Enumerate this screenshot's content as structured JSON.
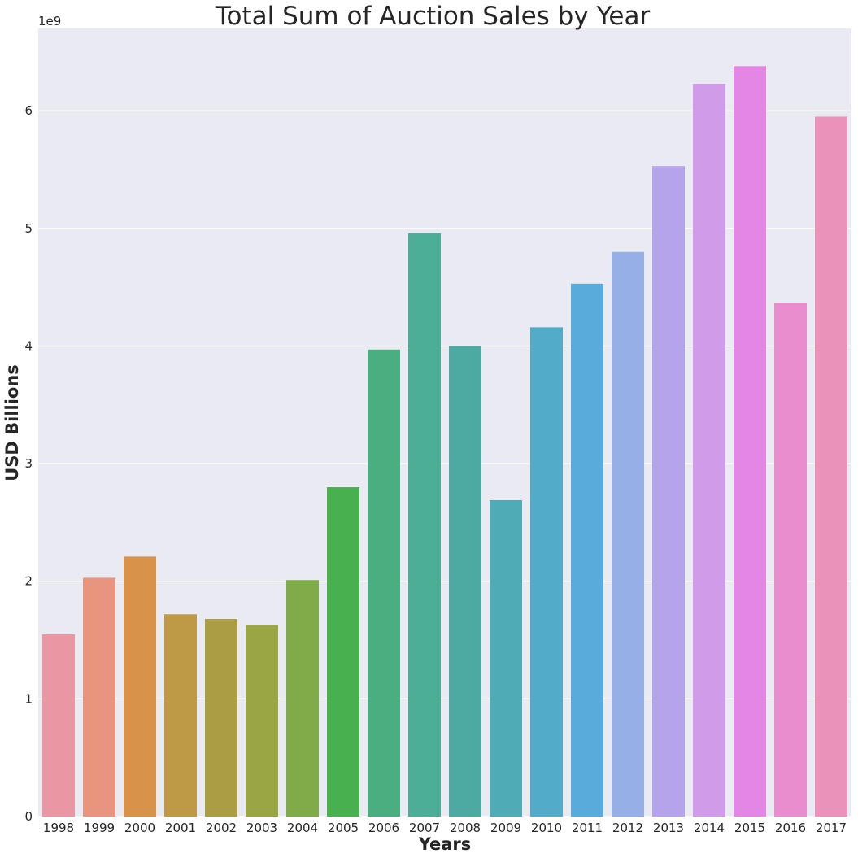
{
  "chart_data": {
    "type": "bar",
    "title": "Total Sum of Auction Sales by Year",
    "xlabel": "Years",
    "ylabel": "USD Billions",
    "y_offset_label": "1e9",
    "categories": [
      "1998",
      "1999",
      "2000",
      "2001",
      "2002",
      "2003",
      "2004",
      "2005",
      "2006",
      "2007",
      "2008",
      "2009",
      "2010",
      "2011",
      "2012",
      "2013",
      "2014",
      "2015",
      "2016",
      "2017"
    ],
    "values": [
      1.55,
      2.03,
      2.21,
      1.72,
      1.68,
      1.63,
      2.01,
      2.8,
      3.97,
      4.96,
      4.0,
      2.69,
      4.16,
      4.53,
      4.8,
      5.53,
      6.23,
      6.38,
      4.37,
      5.95
    ],
    "ylim": [
      0,
      6.7
    ],
    "yticks": [
      "0",
      "1",
      "2",
      "3",
      "4",
      "5",
      "6"
    ],
    "grid": true,
    "background_color": "#eaeaf2",
    "grid_color": "#ffffff",
    "bar_colors": [
      "#ea96a3",
      "#e8947f",
      "#d8924a",
      "#be9a46",
      "#ab9d43",
      "#9aa544",
      "#7fab48",
      "#49b050",
      "#4aae80",
      "#4bae95",
      "#4daaa3",
      "#4fabb6",
      "#52acc9",
      "#59abdc",
      "#96afe6",
      "#b5a4eb",
      "#d09be8",
      "#e487e4",
      "#e88ecf",
      "#eb92b9"
    ]
  }
}
